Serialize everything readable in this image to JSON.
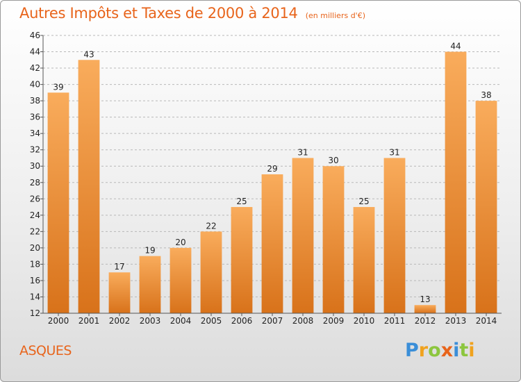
{
  "colors": {
    "title": "#e8641b",
    "bar_light": "#f9ac5c",
    "bar_dark": "#d8721a",
    "grid": "#b8b8b8"
  },
  "chart_data": {
    "type": "bar",
    "title": "Autres Impôts et Taxes de 2000 à 2014",
    "subtitle": "(en milliers d'€)",
    "categories": [
      "2000",
      "2001",
      "2002",
      "2003",
      "2004",
      "2005",
      "2006",
      "2007",
      "2008",
      "2009",
      "2010",
      "2011",
      "2012",
      "2013",
      "2014"
    ],
    "values": [
      39,
      43,
      17,
      19,
      20,
      22,
      25,
      29,
      31,
      30,
      25,
      31,
      13,
      44,
      38
    ],
    "ylim": [
      12,
      46
    ],
    "yticks": [
      12,
      14,
      16,
      18,
      20,
      22,
      24,
      26,
      28,
      30,
      32,
      34,
      36,
      38,
      40,
      42,
      44,
      46
    ],
    "grid": "horizontal dashed",
    "legend": "none",
    "data_labels": true
  },
  "commune": "ASQUES",
  "logo": {
    "text": "Proxiti",
    "letters": [
      {
        "ch": "P",
        "color": "#3a8ed8"
      },
      {
        "ch": "r",
        "color": "#f0a21e"
      },
      {
        "ch": "o",
        "color": "#8cc63e"
      },
      {
        "ch": "x",
        "color": "#e8641b"
      },
      {
        "ch": "i",
        "color": "#3a8ed8"
      },
      {
        "ch": "t",
        "color": "#8cc63e"
      },
      {
        "ch": "i",
        "color": "#f0a21e"
      }
    ]
  }
}
